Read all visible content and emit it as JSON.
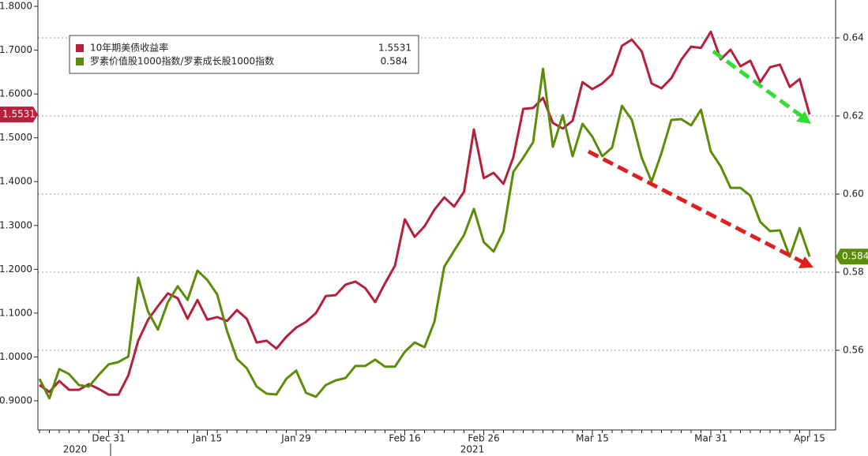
{
  "chart_data": {
    "type": "line",
    "categories": [
      null,
      null,
      null,
      null,
      null,
      null,
      null,
      "Dec 31",
      null,
      null,
      null,
      null,
      null,
      null,
      null,
      null,
      null,
      "Jan 15",
      null,
      null,
      null,
      null,
      null,
      null,
      null,
      null,
      "Jan 29",
      null,
      null,
      null,
      null,
      null,
      null,
      null,
      null,
      null,
      null,
      "Feb 16",
      null,
      null,
      null,
      null,
      null,
      null,
      null,
      "Feb 26",
      null,
      null,
      null,
      null,
      null,
      null,
      null,
      null,
      null,
      null,
      "Mar 15",
      null,
      null,
      null,
      null,
      null,
      null,
      null,
      null,
      null,
      null,
      null,
      "Mar 31",
      null,
      null,
      null,
      null,
      null,
      null,
      null,
      null,
      null,
      "Apr 15"
    ],
    "year_labels": [
      "2020",
      "2021"
    ],
    "series": [
      {
        "name": "10年期美债收益率",
        "color": "#b5203c",
        "values": [
          0.936,
          0.92,
          0.945,
          0.925,
          0.925,
          0.938,
          0.927,
          0.914,
          0.914,
          0.958,
          1.037,
          1.085,
          1.116,
          1.145,
          1.134,
          1.087,
          1.13,
          1.085,
          1.091,
          1.082,
          1.107,
          1.087,
          1.033,
          1.037,
          1.019,
          1.046,
          1.067,
          1.08,
          1.1,
          1.139,
          1.141,
          1.165,
          1.172,
          1.157,
          1.125,
          1.168,
          1.208,
          1.314,
          1.274,
          1.298,
          1.336,
          1.364,
          1.343,
          1.377,
          1.519,
          1.408,
          1.42,
          1.395,
          1.456,
          1.566,
          1.568,
          1.591,
          1.534,
          1.521,
          1.539,
          1.627,
          1.611,
          1.624,
          1.645,
          1.71,
          1.724,
          1.697,
          1.624,
          1.613,
          1.636,
          1.678,
          1.708,
          1.705,
          1.742,
          1.679,
          1.701,
          1.663,
          1.676,
          1.627,
          1.661,
          1.667,
          1.616,
          1.634,
          1.5531
        ]
      },
      {
        "name": "罗素价值股1000指数/罗素成长股1000指数",
        "color": "#5b8c0a",
        "axis": "y2",
        "values": [
          0.5527,
          0.5477,
          0.5552,
          0.5539,
          0.5511,
          0.5507,
          0.5537,
          0.5564,
          0.557,
          0.5584,
          0.5786,
          0.5699,
          0.5653,
          0.5723,
          0.5764,
          0.5729,
          0.5804,
          0.578,
          0.5743,
          0.5649,
          0.5578,
          0.5554,
          0.5507,
          0.5489,
          0.5487,
          0.5527,
          0.5548,
          0.5491,
          0.5481,
          0.5511,
          0.5523,
          0.5529,
          0.556,
          0.556,
          0.5576,
          0.5558,
          0.5558,
          0.5596,
          0.562,
          0.5608,
          0.5673,
          0.5814,
          0.5855,
          0.5895,
          0.5962,
          0.5877,
          0.5853,
          0.5905,
          0.6057,
          0.6093,
          0.6133,
          0.6321,
          0.6121,
          0.6202,
          0.6097,
          0.618,
          0.6147,
          0.6097,
          0.6119,
          0.6226,
          0.619,
          0.6093,
          0.6032,
          0.6105,
          0.619,
          0.6192,
          0.6176,
          0.6216,
          0.6109,
          0.6071,
          0.6016,
          0.6016,
          0.5996,
          0.5929,
          0.5905,
          0.5907,
          0.584,
          0.5913,
          0.584
        ]
      }
    ],
    "ylim": [
      0.8334,
      1.8144
    ],
    "yticks": [
      {
        "value": 0.9,
        "label": "0.9000"
      },
      {
        "value": 1.0,
        "label": "1.0000"
      },
      {
        "value": 1.1,
        "label": "1.1000"
      },
      {
        "value": 1.2,
        "label": "1.2000"
      },
      {
        "value": 1.3,
        "label": "1.3000"
      },
      {
        "value": 1.4,
        "label": "1.4000"
      },
      {
        "value": 1.5,
        "label": "1.5000"
      },
      {
        "value": 1.6,
        "label": "1.6000"
      },
      {
        "value": 1.7,
        "label": "1.7000"
      },
      {
        "value": 1.8,
        "label": "1.8000"
      }
    ],
    "y2lim": [
      0.5396,
      0.6497
    ],
    "y2ticks": [
      0.56,
      0.58,
      {
        "value": 0.6,
        "label": "0.60"
      },
      0.62,
      0.64
    ],
    "grid": true
  }
}
